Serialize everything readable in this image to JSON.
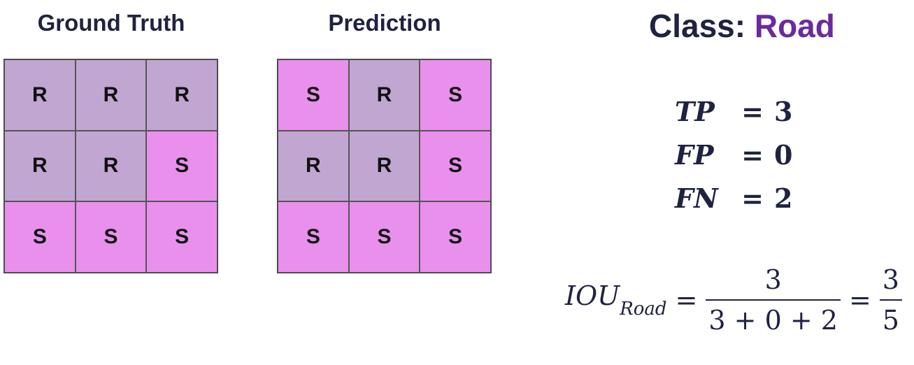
{
  "ground_truth": {
    "title": "Ground Truth",
    "cells": [
      "R",
      "R",
      "R",
      "R",
      "R",
      "S",
      "S",
      "S",
      "S"
    ]
  },
  "prediction": {
    "title": "Prediction",
    "cells": [
      "S",
      "R",
      "S",
      "R",
      "R",
      "S",
      "S",
      "S",
      "S"
    ]
  },
  "class_label": {
    "prefix": "Class:",
    "name": "Road"
  },
  "metrics": [
    {
      "name": "TP",
      "eq": "=",
      "value": "3"
    },
    {
      "name": "FP",
      "eq": "=",
      "value": "0"
    },
    {
      "name": "FN",
      "eq": "=",
      "value": "2"
    }
  ],
  "formula": {
    "lhs": "IOU",
    "subscript": "Road",
    "eq1": "=",
    "numerator1": "3",
    "denominator1": "3 + 0 + 2",
    "eq2": "=",
    "numerator2": "3",
    "denominator2": "5"
  },
  "colors": {
    "road": "#c1a6d2",
    "sidewalk": "#e990ec",
    "class_accent": "#6b2a9c",
    "text": "#1f2240"
  }
}
